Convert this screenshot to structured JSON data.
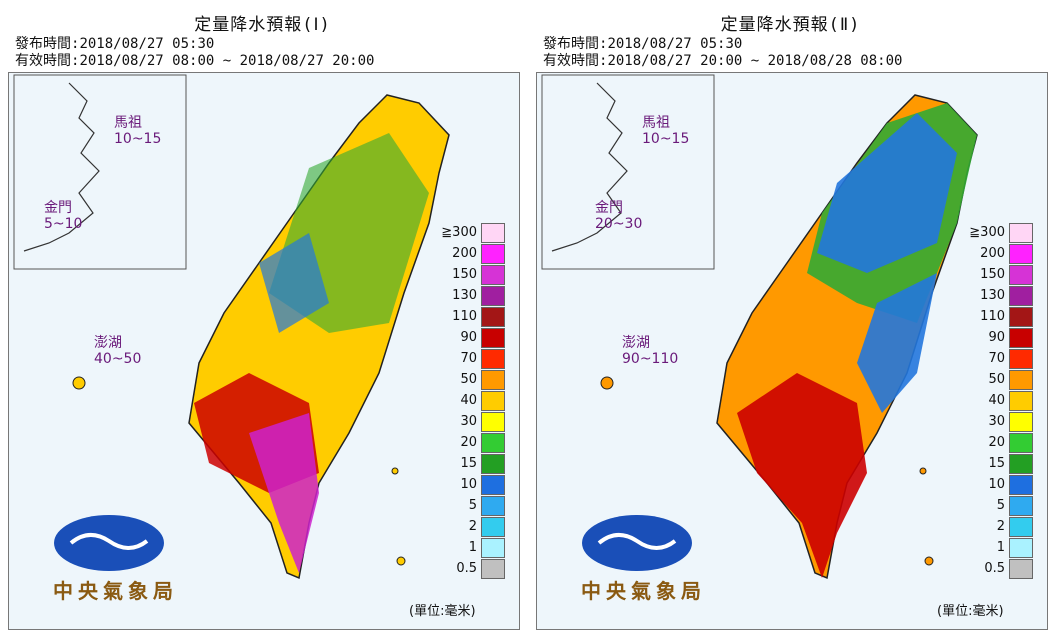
{
  "panels": [
    {
      "title": "定量降水預報(Ⅰ)",
      "issue_label": "發布時間:",
      "issue_time": "2018/08/27 05:30",
      "valid_label": "有效時間:",
      "valid_time": "2018/08/27 08:00 ~ 2018/08/27 20:00",
      "regions": [
        {
          "name": "馬祖",
          "range": "10~15"
        },
        {
          "name": "金門",
          "range": "5~10"
        },
        {
          "name": "澎湖",
          "range": "40~50"
        }
      ],
      "fills": [
        "#ff9900",
        "#ffcc00",
        "#33aa33",
        "#2277dd",
        "#cc0000",
        "#cc22cc"
      ]
    },
    {
      "title": "定量降水預報(Ⅱ)",
      "issue_label": "發布時間:",
      "issue_time": "2018/08/27 05:30",
      "valid_label": "有效時間:",
      "valid_time": "2018/08/27 20:00 ~ 2018/08/28 08:00",
      "regions": [
        {
          "name": "馬祖",
          "range": "10~15"
        },
        {
          "name": "金門",
          "range": "20~30"
        },
        {
          "name": "澎湖",
          "range": "90~110"
        }
      ],
      "fills": [
        "#ff9900",
        "#33aa33",
        "#2277dd",
        "#2277dd",
        "#cc0000",
        "#9a1fa0"
      ]
    }
  ],
  "legend": {
    "levels": [
      "≧300",
      "200",
      "150",
      "130",
      "110",
      "90",
      "70",
      "50",
      "40",
      "30",
      "20",
      "15",
      "10",
      "5",
      "2",
      "1",
      "0.5"
    ],
    "colors": [
      "#ffd6f5",
      "#ff22ff",
      "#d633d6",
      "#a01fa0",
      "#a31616",
      "#c80000",
      "#ff2a00",
      "#ff9900",
      "#ffcc00",
      "#ffff00",
      "#33cc33",
      "#239f23",
      "#1e6fe0",
      "#2faaf0",
      "#33ccee",
      "#aaf2ff",
      "#c0c0c0"
    ]
  },
  "unit": "(單位:毫米)",
  "logo": {
    "text": "中央氣象局",
    "icon": "cwb-logo-icon"
  }
}
